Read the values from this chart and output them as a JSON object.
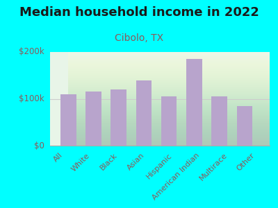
{
  "title": "Median household income in 2022",
  "subtitle": "Cibolo, TX",
  "categories": [
    "All",
    "White",
    "Black",
    "Asian",
    "Hispanic",
    "American Indian",
    "Multirace",
    "Other"
  ],
  "values": [
    110000,
    115000,
    120000,
    140000,
    105000,
    185000,
    105000,
    85000
  ],
  "bar_color": "#b8a4cc",
  "background_outer": "#00ffff",
  "background_inner": "#e8f5e8",
  "title_color": "#1a1a1a",
  "subtitle_color": "#8B5A5A",
  "tick_color": "#8B5A5A",
  "ylim": [
    0,
    200000
  ],
  "yticks": [
    0,
    100000,
    200000
  ],
  "ytick_labels": [
    "$0",
    "$100k",
    "$200k"
  ],
  "title_fontsize": 13,
  "subtitle_fontsize": 10,
  "tick_fontsize": 8.5
}
